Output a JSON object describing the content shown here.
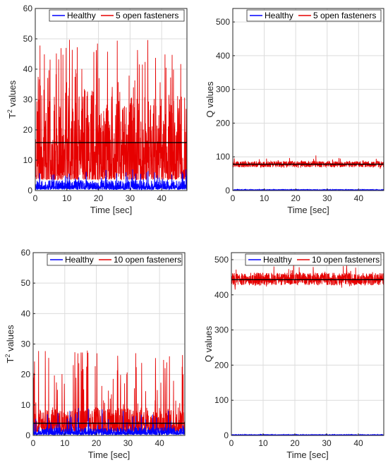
{
  "chart_data": [
    {
      "id": "p1",
      "type": "line",
      "xlabel": "Time [sec]",
      "ylabel_base": "T",
      "ylabel_sup": "2",
      "ylabel_tail": " values",
      "xlim": [
        0,
        48
      ],
      "ylim": [
        0,
        60
      ],
      "xticks": [
        0,
        10,
        20,
        30,
        40
      ],
      "yticks": [
        0,
        10,
        20,
        30,
        40,
        50,
        60
      ],
      "grid": true,
      "legend": "top",
      "threshold": 15.8,
      "series": [
        {
          "name": "Healthy",
          "color": "#0000ff",
          "seed": 11,
          "kind": "t2",
          "base": 1.2,
          "amp": 3,
          "spikes": 0.06,
          "spikeMax": 7
        },
        {
          "name": "5 open fasteners",
          "color": "#e60000",
          "seed": 23,
          "kind": "t2",
          "base": 12,
          "amp": 28,
          "spikes": 0.12,
          "spikeMax": 50
        }
      ]
    },
    {
      "id": "p2",
      "type": "line",
      "xlabel": "Time [sec]",
      "ylabel": "Q values",
      "xlim": [
        0,
        48
      ],
      "ylim": [
        0,
        540
      ],
      "xticks": [
        0,
        10,
        20,
        30,
        40
      ],
      "yticks": [
        0,
        100,
        200,
        300,
        400,
        500
      ],
      "grid": true,
      "legend": "top",
      "threshold": 78,
      "series": [
        {
          "name": "Healthy",
          "color": "#0000ff",
          "seed": 37,
          "kind": "flat",
          "base": 2,
          "amp": 2
        },
        {
          "name": "5 open fasteners",
          "color": "#e60000",
          "seed": 41,
          "kind": "band",
          "base": 78,
          "amp": 9
        }
      ]
    },
    {
      "id": "p3",
      "type": "line",
      "xlabel": "Time [sec]",
      "ylabel_base": "T",
      "ylabel_sup": "2",
      "ylabel_tail": " values",
      "xlim": [
        0,
        48
      ],
      "ylim": [
        0,
        60
      ],
      "xticks": [
        0,
        10,
        20,
        30,
        40
      ],
      "yticks": [
        0,
        10,
        20,
        30,
        40,
        50,
        60
      ],
      "grid": true,
      "legend": "top",
      "threshold": 4,
      "series": [
        {
          "name": "Healthy",
          "color": "#0000ff",
          "seed": 53,
          "kind": "t2",
          "base": 0.8,
          "amp": 2.5,
          "spikes": 0.06,
          "spikeMax": 9
        },
        {
          "name": "10 open fasteners",
          "color": "#e60000",
          "seed": 67,
          "kind": "t2",
          "base": 4,
          "amp": 8,
          "spikes": 0.08,
          "spikeMax": 28
        }
      ]
    },
    {
      "id": "p4",
      "type": "line",
      "xlabel": "Time [sec]",
      "ylabel": "Q values",
      "xlim": [
        0,
        48
      ],
      "ylim": [
        0,
        520
      ],
      "xticks": [
        0,
        10,
        20,
        30,
        40
      ],
      "yticks": [
        0,
        100,
        200,
        300,
        400,
        500
      ],
      "grid": true,
      "legend": "top",
      "threshold": 443,
      "series": [
        {
          "name": "Healthy",
          "color": "#0000ff",
          "seed": 71,
          "kind": "flat",
          "base": 1.5,
          "amp": 2
        },
        {
          "name": "10 open fasteners",
          "color": "#e60000",
          "seed": 83,
          "kind": "band",
          "base": 445,
          "amp": 18
        }
      ]
    }
  ]
}
